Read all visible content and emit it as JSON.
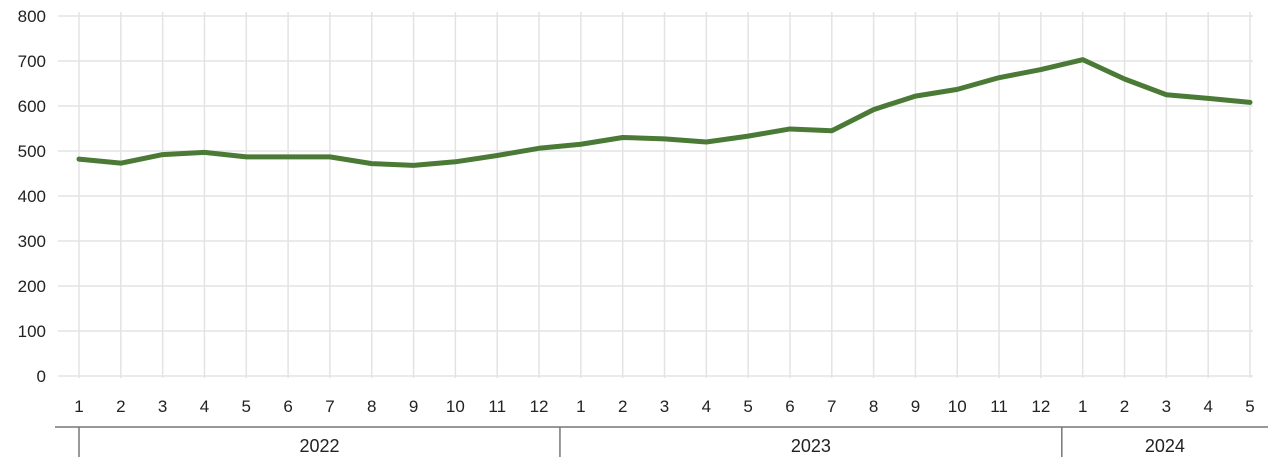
{
  "chart_data": {
    "type": "line",
    "title": "",
    "xlabel": "",
    "ylabel": "",
    "ylim": [
      0,
      800
    ],
    "y_ticks": [
      "0",
      "100",
      "200",
      "300",
      "400",
      "500",
      "600",
      "700",
      "800"
    ],
    "x_tick_labels": [
      "1",
      "2",
      "3",
      "4",
      "5",
      "6",
      "7",
      "8",
      "9",
      "10",
      "11",
      "12",
      "1",
      "2",
      "3",
      "4",
      "5",
      "6",
      "7",
      "8",
      "9",
      "10",
      "11",
      "12",
      "1",
      "2",
      "3",
      "4",
      "5"
    ],
    "year_groups": [
      {
        "label": "2022",
        "months": 12
      },
      {
        "label": "2023",
        "months": 12
      },
      {
        "label": "2024",
        "months": 5
      }
    ],
    "grid": true,
    "legend": "none",
    "line_color": "#4a7a35",
    "series": [
      {
        "values": [
          482,
          473,
          492,
          497,
          487,
          487,
          487,
          472,
          468,
          476,
          490,
          506,
          515,
          530,
          527,
          520,
          533,
          549,
          545,
          592,
          622,
          637,
          663,
          681,
          703,
          660,
          625,
          617,
          608
        ]
      }
    ]
  }
}
